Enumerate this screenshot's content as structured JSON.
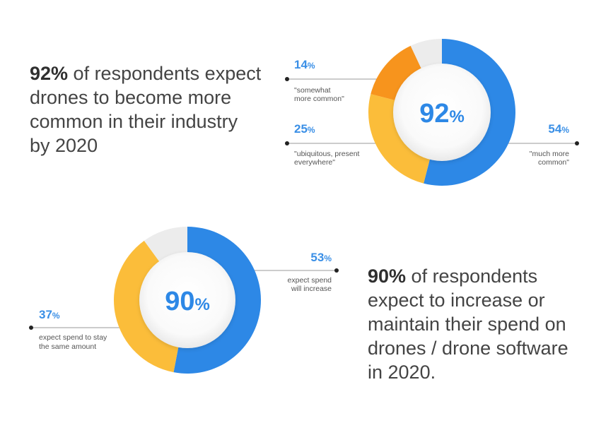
{
  "statements": [
    {
      "lead": "92%",
      "rest": " of respondents expect drones to become more common in their industry by 2020"
    },
    {
      "lead": "90%",
      "rest": " of respondents expect to increase or maintain their spend on drones / drone software in 2020."
    }
  ],
  "colors": {
    "blue": "#2d88e6",
    "yellow": "#fbbd3a",
    "orange": "#f7941d",
    "gray": "#ececec",
    "label_blue": "#3a8fe6"
  },
  "chart_data": [
    {
      "type": "pie",
      "variant": "donut",
      "center_label": "92",
      "center_unit": "%",
      "slices": [
        {
          "value": 54,
          "display": "54",
          "unit": "%",
          "label_lines": [
            "\"much more",
            "common\""
          ],
          "color": "#2d88e6"
        },
        {
          "value": 25,
          "display": "25",
          "unit": "%",
          "label_lines": [
            "\"ubiquitous, present",
            "everywhere\""
          ],
          "color": "#fbbd3a"
        },
        {
          "value": 14,
          "display": "14",
          "unit": "%",
          "label_lines": [
            "\"somewhat",
            "more common\""
          ],
          "color": "#f7941d"
        },
        {
          "value": 7,
          "display": null,
          "unit": null,
          "label_lines": [],
          "color": "#ececec"
        }
      ]
    },
    {
      "type": "pie",
      "variant": "donut",
      "center_label": "90",
      "center_unit": "%",
      "slices": [
        {
          "value": 53,
          "display": "53",
          "unit": "%",
          "label_lines": [
            "expect spend",
            "will increase"
          ],
          "color": "#2d88e6"
        },
        {
          "value": 37,
          "display": "37",
          "unit": "%",
          "label_lines": [
            "expect spend to stay",
            "the same amount"
          ],
          "color": "#fbbd3a"
        },
        {
          "value": 10,
          "display": null,
          "unit": null,
          "label_lines": [],
          "color": "#ececec"
        }
      ]
    }
  ]
}
